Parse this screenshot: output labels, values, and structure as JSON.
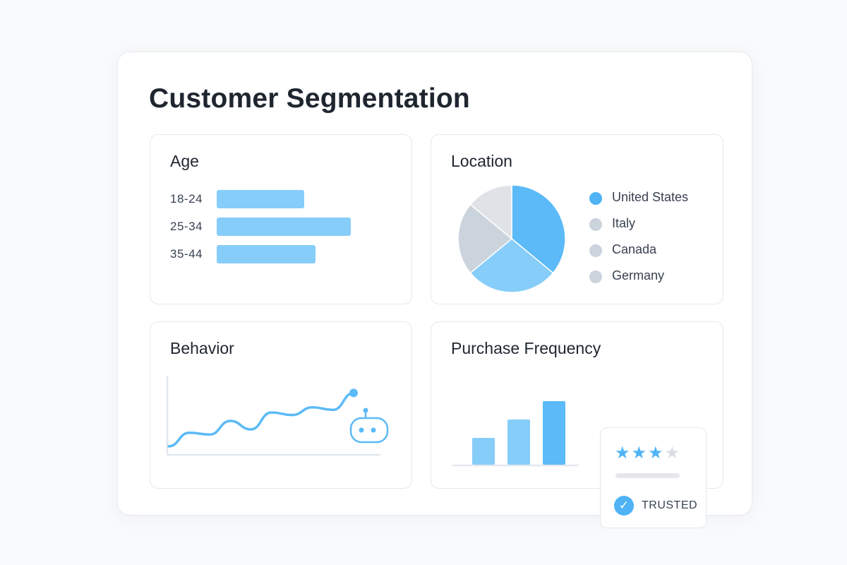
{
  "page": {
    "title": "Customer Segmentation"
  },
  "age": {
    "title": "Age",
    "chart_data": {
      "type": "bar",
      "orientation": "horizontal",
      "categories": [
        "18-24",
        "25-34",
        "35-44"
      ],
      "values": [
        62,
        95,
        70
      ],
      "xlim": [
        0,
        100
      ],
      "color": "#86cdfa"
    }
  },
  "location": {
    "title": "Location",
    "chart_data": {
      "type": "pie",
      "categories": [
        "United States",
        "Italy",
        "Canada",
        "Germany"
      ],
      "values": [
        36,
        28,
        22,
        14
      ],
      "colors": [
        "#5bbaf7",
        "#86cdfa",
        "#cbd3dc",
        "#dfe3e8"
      ]
    },
    "legend_colors": [
      "#4fb3f6",
      "#cbd3dc",
      "#cbd3dc",
      "#cbd3dc"
    ]
  },
  "behavior": {
    "title": "Behavior",
    "chart_data": {
      "type": "line",
      "x": [
        0,
        1,
        2,
        3,
        4,
        5,
        6,
        7,
        8,
        9
      ],
      "values": [
        10,
        26,
        24,
        40,
        30,
        50,
        47,
        56,
        53,
        73
      ],
      "ylim": [
        0,
        100
      ],
      "color": "#5bbaf7"
    },
    "robot_icon": "robot-icon"
  },
  "purchase_frequency": {
    "title": "Purchase Frequency",
    "chart_data": {
      "type": "bar",
      "categories": [
        "",
        "",
        ""
      ],
      "values": [
        38,
        64,
        90
      ],
      "ylim": [
        0,
        100
      ],
      "colors": [
        "#86cdfa",
        "#86cdfa",
        "#5bbaf7"
      ]
    },
    "rating": {
      "filled": 3,
      "total": 4,
      "filled_color": "#4fb3f6",
      "empty_color": "#d9dde3"
    },
    "check_icon": "check-circle-icon",
    "trusted_label": "TRUSTED"
  }
}
